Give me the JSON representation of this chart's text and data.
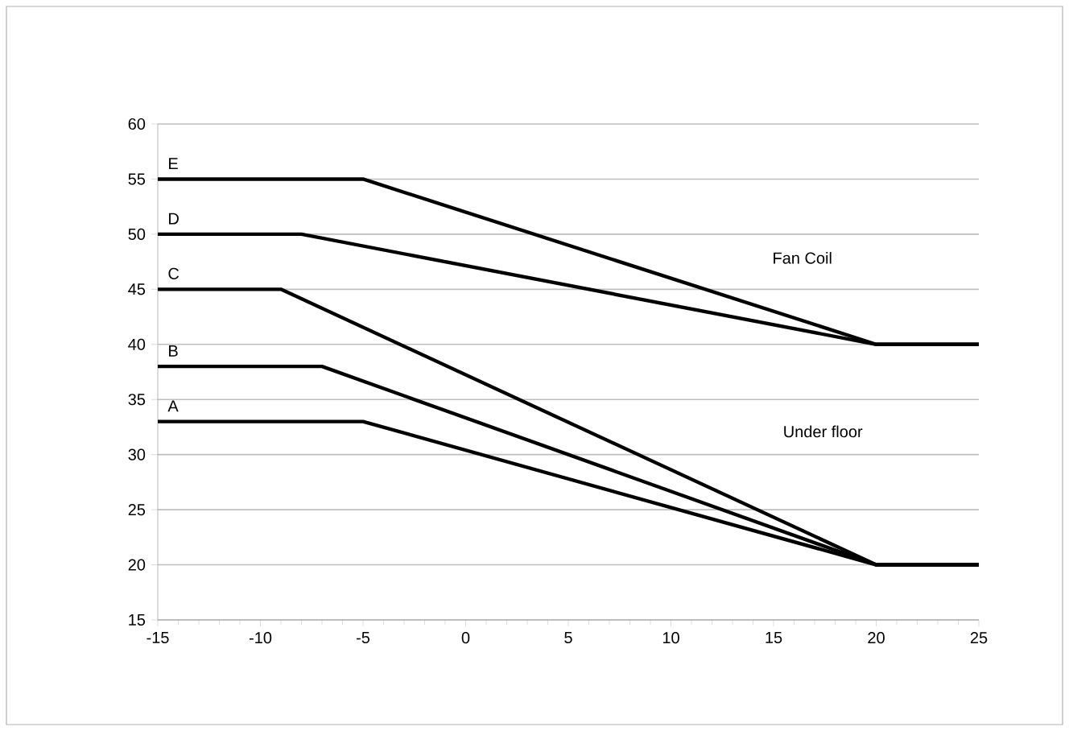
{
  "chart_data": {
    "type": "line",
    "series": [
      {
        "name": "E",
        "color": "#000000",
        "x": [
          -15,
          -5,
          20,
          25
        ],
        "values": [
          55,
          55,
          40,
          40
        ]
      },
      {
        "name": "D",
        "color": "#000000",
        "x": [
          -15,
          -8,
          20,
          25
        ],
        "values": [
          50,
          50,
          40,
          40
        ]
      },
      {
        "name": "C",
        "color": "#000000",
        "x": [
          -15,
          -9,
          20,
          25
        ],
        "values": [
          45,
          45,
          20,
          20
        ]
      },
      {
        "name": "B",
        "color": "#000000",
        "x": [
          -15,
          -7,
          20,
          25
        ],
        "values": [
          38,
          38,
          20,
          20
        ]
      },
      {
        "name": "A",
        "color": "#000000",
        "x": [
          -15,
          -5,
          20,
          25
        ],
        "values": [
          33,
          33,
          20,
          20
        ]
      }
    ],
    "annotations": [
      "Fan Coil",
      "Under floor"
    ],
    "xlim": [
      -15,
      25
    ],
    "xticks": [
      -15,
      -10,
      -5,
      0,
      5,
      10,
      15,
      20,
      25
    ],
    "ylim": [
      15,
      60
    ],
    "yticks": [
      15,
      20,
      25,
      30,
      35,
      40,
      45,
      50,
      55,
      60
    ],
    "grid": "y",
    "line_style": "solid",
    "legend": false
  }
}
